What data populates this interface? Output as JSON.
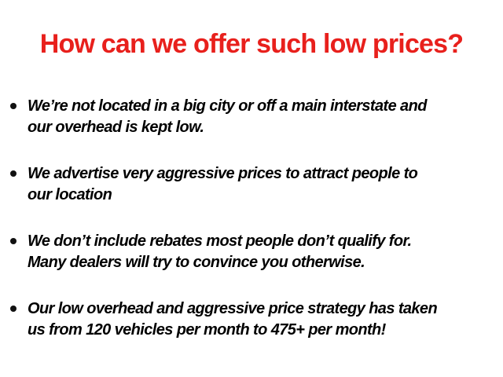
{
  "title": "How can we offer such low prices?",
  "colors": {
    "title": "#e8201c",
    "text": "#000000"
  },
  "bullets": [
    {
      "lines": [
        "We’re not located in a big city or off a main interstate and",
        "our overhead is kept low."
      ]
    },
    {
      "lines": [
        "We advertise very aggressive prices to attract people to",
        "our location"
      ]
    },
    {
      "lines": [
        "We don’t include rebates most people don’t qualify for.",
        "Many dealers will try to convince you otherwise."
      ]
    },
    {
      "lines": [
        "Our low overhead and aggressive price strategy has taken",
        "us from 120 vehicles per month to 475+ per month!"
      ]
    }
  ]
}
